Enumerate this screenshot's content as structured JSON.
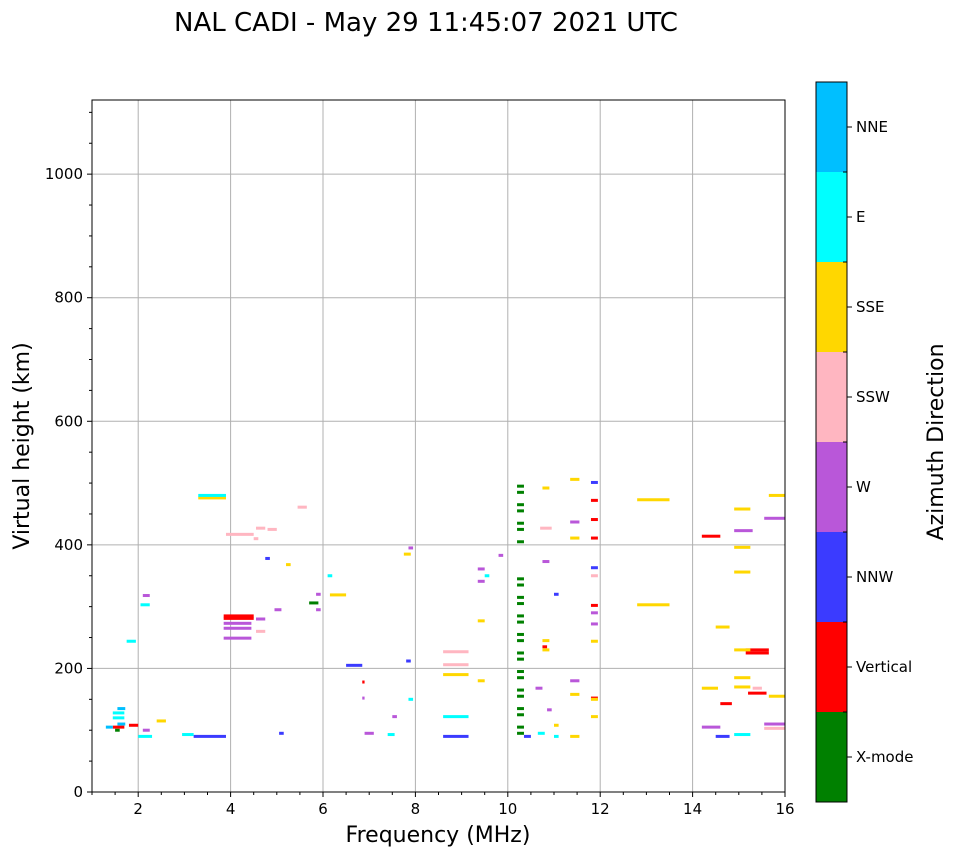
{
  "chart_data": {
    "type": "scatter",
    "title": "NAL CADI - May 29 11:45:07 2021 UTC",
    "xlabel": "Frequency (MHz)",
    "ylabel": "Virtual height (km)",
    "xlim": [
      1,
      16
    ],
    "ylim": [
      0,
      1120
    ],
    "xticks": [
      2,
      4,
      6,
      8,
      10,
      12,
      14,
      16
    ],
    "xtick_labels": [
      "2",
      "4",
      "6",
      "8",
      "10",
      "12",
      "14",
      "16"
    ],
    "yticks": [
      0,
      200,
      400,
      600,
      800,
      1000
    ],
    "ytick_labels": [
      "0",
      "200",
      "400",
      "600",
      "800",
      "1000"
    ],
    "grid": true,
    "colorbar": {
      "label": "Azimuth Direction",
      "categories": [
        "X-mode",
        "Vertical",
        "NNW",
        "W",
        "SSW",
        "SSE",
        "E",
        "NNE"
      ],
      "colors": [
        "#008000",
        "#ff0000",
        "#3b3bff",
        "#b957d9",
        "#ffb6c1",
        "#ffd700",
        "#00ffff",
        "#00bfff"
      ]
    },
    "series": [
      {
        "name": "X-mode",
        "segments": [
          [
            10.2,
            10.35,
            495
          ],
          [
            10.2,
            10.35,
            485
          ],
          [
            10.2,
            10.35,
            465
          ],
          [
            10.2,
            10.35,
            455
          ],
          [
            10.2,
            10.35,
            435
          ],
          [
            10.2,
            10.35,
            425
          ],
          [
            10.2,
            10.35,
            405
          ],
          [
            10.2,
            10.35,
            345
          ],
          [
            10.2,
            10.35,
            335
          ],
          [
            10.2,
            10.35,
            315
          ],
          [
            10.2,
            10.35,
            305
          ],
          [
            10.2,
            10.35,
            285
          ],
          [
            10.2,
            10.35,
            275
          ],
          [
            10.2,
            10.35,
            255
          ],
          [
            10.2,
            10.35,
            245
          ],
          [
            10.2,
            10.35,
            225
          ],
          [
            10.2,
            10.35,
            215
          ],
          [
            10.2,
            10.35,
            195
          ],
          [
            10.2,
            10.35,
            185
          ],
          [
            10.2,
            10.35,
            165
          ],
          [
            10.2,
            10.35,
            155
          ],
          [
            10.2,
            10.35,
            135
          ],
          [
            10.2,
            10.35,
            125
          ],
          [
            10.2,
            10.35,
            105
          ],
          [
            10.2,
            10.35,
            95
          ],
          [
            5.7,
            5.9,
            306
          ],
          [
            1.5,
            1.6,
            100
          ]
        ]
      },
      {
        "name": "Vertical",
        "segments": [
          [
            11.8,
            11.95,
            472
          ],
          [
            11.8,
            11.95,
            441
          ],
          [
            11.8,
            11.95,
            411
          ],
          [
            11.8,
            11.95,
            302
          ],
          [
            11.8,
            11.95,
            152
          ],
          [
            14.2,
            14.6,
            414
          ],
          [
            14.6,
            14.85,
            143
          ],
          [
            15.15,
            15.65,
            230
          ],
          [
            15.15,
            15.65,
            225
          ],
          [
            15.2,
            15.6,
            160
          ],
          [
            3.85,
            4.5,
            285
          ],
          [
            3.85,
            4.5,
            281
          ],
          [
            10.75,
            10.85,
            235
          ],
          [
            6.85,
            6.9,
            178
          ],
          [
            1.8,
            2.0,
            108
          ],
          [
            1.45,
            1.7,
            105
          ]
        ]
      },
      {
        "name": "NNW",
        "segments": [
          [
            3.2,
            3.9,
            90
          ],
          [
            6.5,
            6.85,
            205
          ],
          [
            11.8,
            11.95,
            501
          ],
          [
            11.8,
            11.95,
            363
          ],
          [
            8.6,
            9.15,
            90
          ],
          [
            10.35,
            10.5,
            90
          ],
          [
            14.5,
            14.8,
            90
          ],
          [
            7.8,
            7.9,
            212
          ],
          [
            4.75,
            4.85,
            378
          ],
          [
            11.0,
            11.1,
            320
          ],
          [
            5.05,
            5.15,
            95
          ]
        ]
      },
      {
        "name": "W",
        "segments": [
          [
            3.85,
            4.45,
            265
          ],
          [
            3.85,
            4.45,
            249
          ],
          [
            3.85,
            4.45,
            273
          ],
          [
            4.55,
            4.75,
            280
          ],
          [
            6.9,
            7.1,
            95
          ],
          [
            15.55,
            16.0,
            443
          ],
          [
            15.55,
            16.0,
            110
          ],
          [
            14.2,
            14.6,
            105
          ],
          [
            14.9,
            15.3,
            423
          ],
          [
            11.35,
            11.55,
            437
          ],
          [
            11.35,
            11.55,
            180
          ],
          [
            10.75,
            10.9,
            373
          ],
          [
            9.35,
            9.5,
            341
          ],
          [
            9.35,
            9.5,
            361
          ],
          [
            10.6,
            10.75,
            168
          ],
          [
            10.85,
            10.95,
            133
          ],
          [
            11.8,
            11.95,
            272
          ],
          [
            11.8,
            11.95,
            290
          ],
          [
            2.1,
            2.25,
            318
          ],
          [
            2.1,
            2.25,
            100
          ],
          [
            5.85,
            5.95,
            295
          ],
          [
            5.85,
            5.95,
            320
          ],
          [
            4.95,
            5.1,
            295
          ],
          [
            6.85,
            6.9,
            152
          ],
          [
            7.5,
            7.6,
            122
          ],
          [
            9.8,
            9.9,
            383
          ],
          [
            7.85,
            7.95,
            395
          ]
        ]
      },
      {
        "name": "SSW",
        "segments": [
          [
            3.9,
            4.5,
            417
          ],
          [
            4.55,
            4.75,
            427
          ],
          [
            4.55,
            4.75,
            260
          ],
          [
            8.6,
            9.15,
            227
          ],
          [
            8.6,
            9.15,
            206
          ],
          [
            15.55,
            16.0,
            103
          ],
          [
            15.3,
            15.5,
            168
          ],
          [
            5.45,
            5.65,
            461
          ],
          [
            4.8,
            5.0,
            425
          ],
          [
            10.7,
            10.95,
            427
          ],
          [
            11.8,
            11.95,
            350
          ],
          [
            4.5,
            4.6,
            410
          ]
        ]
      },
      {
        "name": "SSE",
        "segments": [
          [
            3.3,
            3.9,
            476
          ],
          [
            12.8,
            13.5,
            473
          ],
          [
            12.8,
            13.5,
            303
          ],
          [
            15.65,
            16.0,
            480
          ],
          [
            15.65,
            16.0,
            155
          ],
          [
            14.9,
            15.25,
            458
          ],
          [
            14.9,
            15.25,
            396
          ],
          [
            14.9,
            15.25,
            356
          ],
          [
            14.9,
            15.25,
            230
          ],
          [
            14.9,
            15.25,
            185
          ],
          [
            14.9,
            15.25,
            170
          ],
          [
            14.2,
            14.55,
            168
          ],
          [
            14.5,
            14.8,
            267
          ],
          [
            8.6,
            9.15,
            190
          ],
          [
            11.35,
            11.55,
            506
          ],
          [
            11.35,
            11.55,
            411
          ],
          [
            11.35,
            11.55,
            158
          ],
          [
            11.35,
            11.55,
            90
          ],
          [
            10.75,
            10.9,
            492
          ],
          [
            10.75,
            10.9,
            245
          ],
          [
            10.75,
            10.9,
            230
          ],
          [
            11.8,
            11.95,
            150
          ],
          [
            11.8,
            11.95,
            122
          ],
          [
            11.8,
            11.95,
            244
          ],
          [
            9.35,
            9.5,
            277
          ],
          [
            9.35,
            9.5,
            180
          ],
          [
            6.15,
            6.5,
            319
          ],
          [
            7.75,
            7.9,
            385
          ],
          [
            5.2,
            5.3,
            368
          ],
          [
            11.0,
            11.1,
            108
          ],
          [
            2.4,
            2.6,
            115
          ]
        ]
      },
      {
        "name": "E",
        "segments": [
          [
            3.3,
            3.9,
            480
          ],
          [
            8.6,
            9.15,
            122
          ],
          [
            2.0,
            2.3,
            90
          ],
          [
            2.05,
            2.25,
            303
          ],
          [
            1.75,
            1.95,
            244
          ],
          [
            2.95,
            3.2,
            93
          ],
          [
            14.9,
            15.25,
            93
          ],
          [
            10.65,
            10.8,
            95
          ],
          [
            11.0,
            11.1,
            90
          ],
          [
            6.1,
            6.2,
            350
          ],
          [
            7.85,
            7.95,
            150
          ],
          [
            9.5,
            9.6,
            350
          ],
          [
            7.4,
            7.55,
            93
          ],
          [
            1.45,
            1.7,
            120
          ],
          [
            1.45,
            1.7,
            128
          ]
        ]
      },
      {
        "name": "NNE",
        "segments": [
          [
            1.55,
            1.72,
            135
          ],
          [
            1.55,
            1.72,
            110
          ],
          [
            1.3,
            1.45,
            105
          ]
        ]
      }
    ]
  }
}
